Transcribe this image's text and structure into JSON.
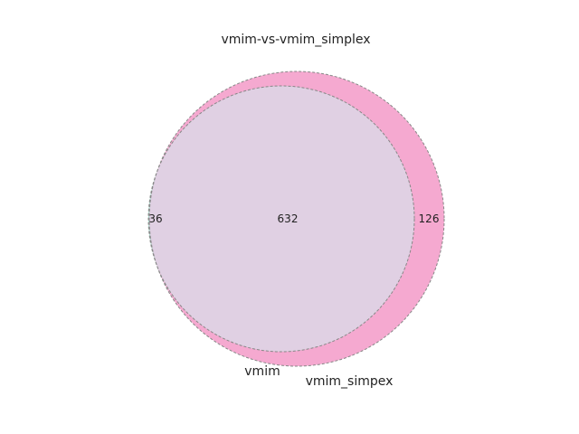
{
  "chart_data": {
    "type": "venn",
    "title": "vmim-vs-vmim_simplex",
    "sets": [
      {
        "name": "vmim",
        "label": "vmim",
        "color": "#66c2a5"
      },
      {
        "name": "vmim_simplex",
        "label": "vmim_simpex",
        "color": "#e7298a"
      }
    ],
    "regions": {
      "only_a": 36,
      "intersection": 632,
      "only_b": 126
    },
    "intersection_color": "#e0d0e3",
    "outline_color": "#888888"
  }
}
